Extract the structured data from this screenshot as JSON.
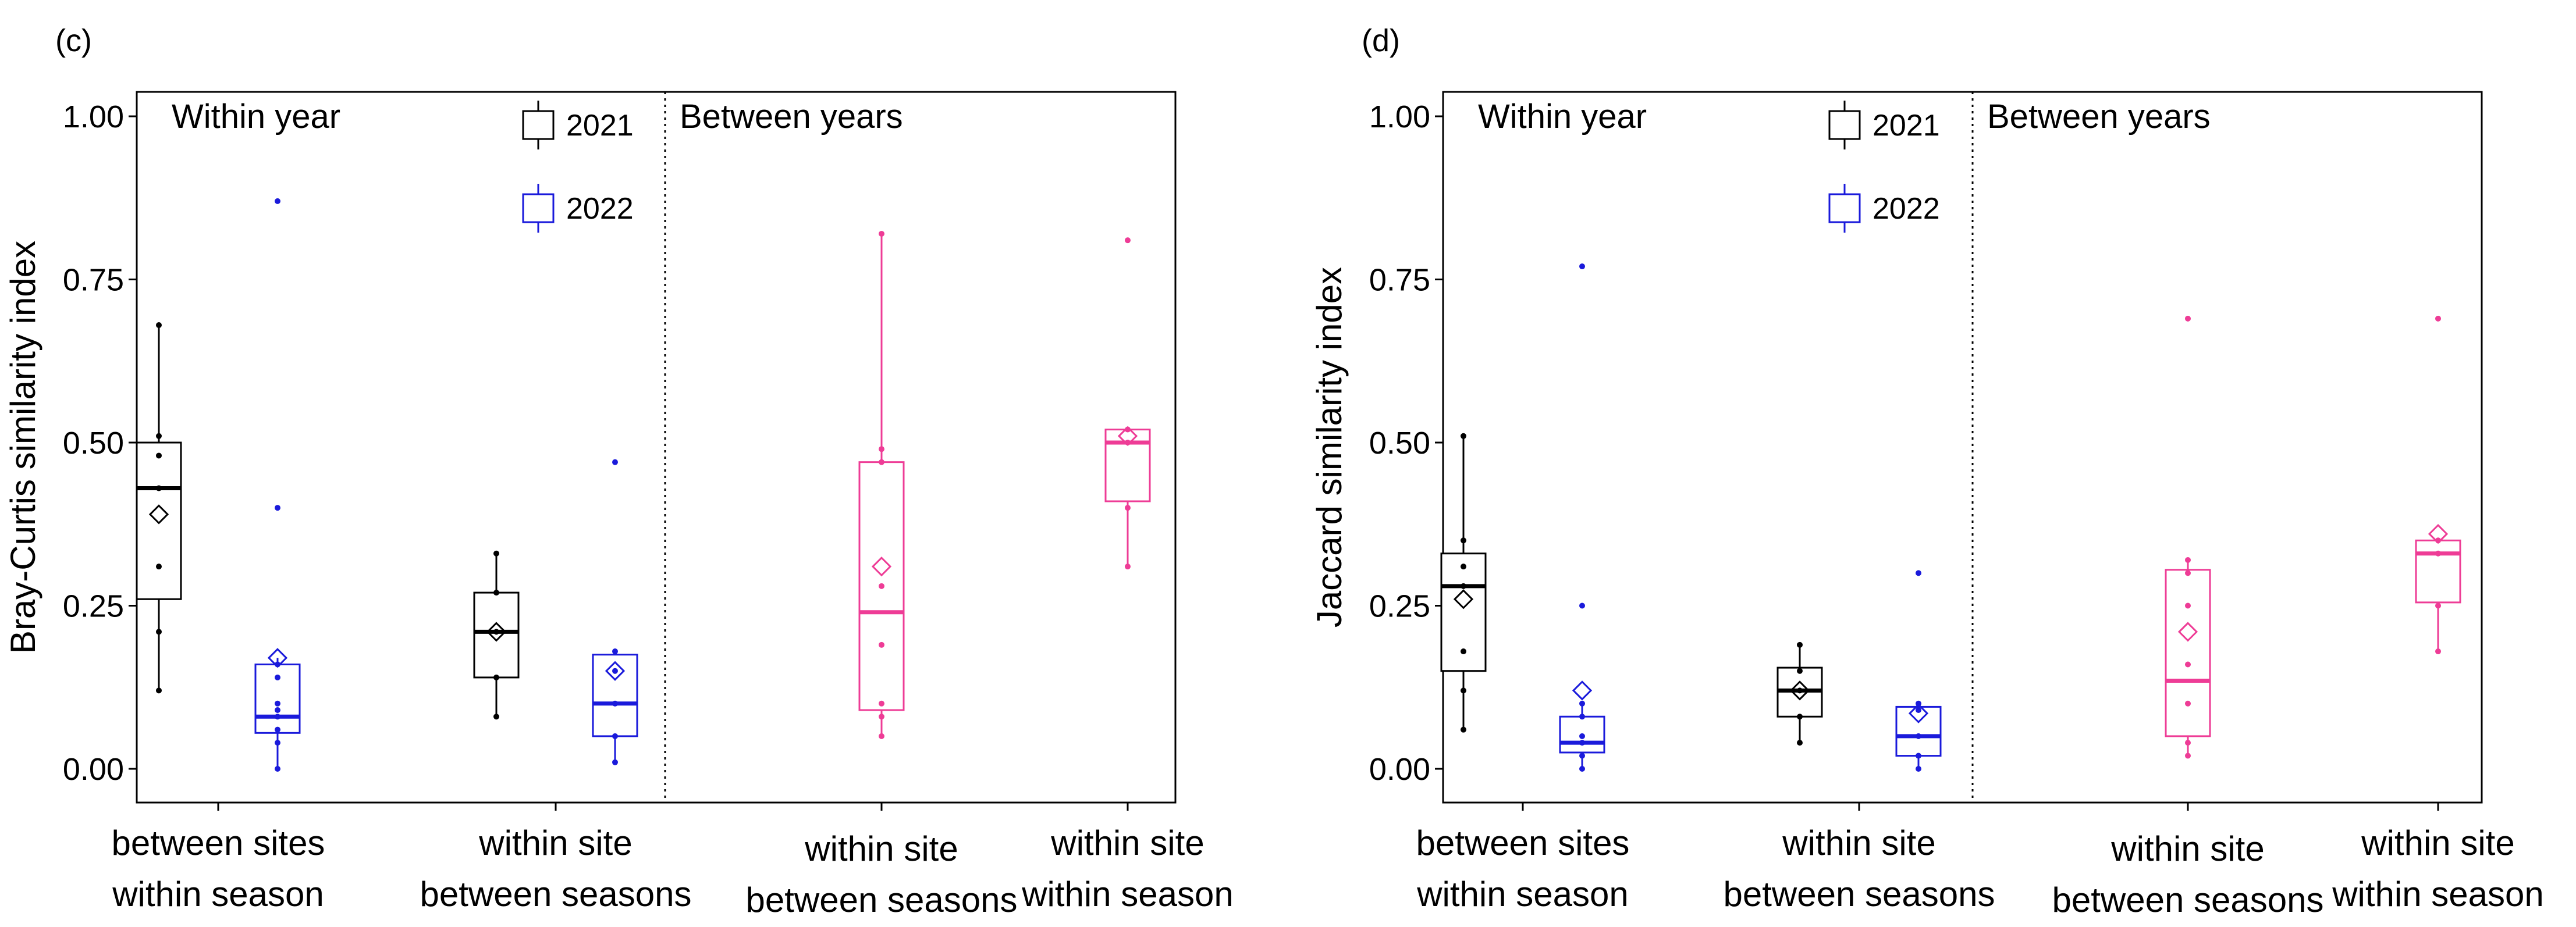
{
  "chart_data": [
    {
      "type": "boxplot",
      "panel_label": "(c)",
      "ylabel": "Bray-Curtis similarity index",
      "ylim": [
        0,
        1
      ],
      "yticks": [
        "0.00",
        "0.25",
        "0.50",
        "0.75",
        "1.00"
      ],
      "regions": [
        "Within year",
        "Between years"
      ],
      "legend": [
        {
          "name": "2021",
          "color": "#000000"
        },
        {
          "name": "2022",
          "color": "#1a1adb"
        }
      ],
      "groups": [
        {
          "line1": "between sites",
          "line2": "within season"
        },
        {
          "line1": "within site",
          "line2": "between seasons"
        },
        {
          "line1": "within site",
          "line2": "between seasons"
        },
        {
          "line1": "within site",
          "line2": "within season"
        }
      ],
      "boxes": [
        {
          "group": 0,
          "series": "2021",
          "color": "#000000",
          "whisker_low": 0.12,
          "q1": 0.26,
          "median": 0.43,
          "q3": 0.5,
          "whisker_high": 0.68,
          "mean": 0.39,
          "points": [
            0.12,
            0.21,
            0.31,
            0.43,
            0.48,
            0.51,
            0.68
          ],
          "outliers": []
        },
        {
          "group": 0,
          "series": "2022",
          "color": "#1a1adb",
          "whisker_low": 0.0,
          "q1": 0.055,
          "median": 0.08,
          "q3": 0.16,
          "whisker_high": 0.17,
          "mean": 0.17,
          "points": [
            0.0,
            0.04,
            0.06,
            0.08,
            0.09,
            0.1,
            0.14,
            0.16
          ],
          "outliers": [
            0.4,
            0.87
          ]
        },
        {
          "group": 1,
          "series": "2021",
          "color": "#000000",
          "whisker_low": 0.08,
          "q1": 0.14,
          "median": 0.21,
          "q3": 0.27,
          "whisker_high": 0.33,
          "mean": 0.21,
          "points": [
            0.08,
            0.14,
            0.21,
            0.27,
            0.33
          ],
          "outliers": []
        },
        {
          "group": 1,
          "series": "2022",
          "color": "#1a1adb",
          "whisker_low": 0.01,
          "q1": 0.05,
          "median": 0.1,
          "q3": 0.175,
          "whisker_high": 0.18,
          "mean": 0.15,
          "points": [
            0.01,
            0.05,
            0.1,
            0.15,
            0.18
          ],
          "outliers": [
            0.47
          ]
        },
        {
          "group": 2,
          "series": "between",
          "color": "#ee3c96",
          "whisker_low": 0.05,
          "q1": 0.09,
          "median": 0.24,
          "q3": 0.47,
          "whisker_high": 0.82,
          "mean": 0.31,
          "points": [
            0.05,
            0.08,
            0.1,
            0.19,
            0.28,
            0.47,
            0.49,
            0.82
          ],
          "outliers": []
        },
        {
          "group": 3,
          "series": "between",
          "color": "#ee3c96",
          "whisker_low": 0.31,
          "q1": 0.41,
          "median": 0.5,
          "q3": 0.52,
          "whisker_high": 0.52,
          "mean": 0.51,
          "points": [
            0.31,
            0.4,
            0.5,
            0.52
          ],
          "outliers": [
            0.81
          ]
        }
      ]
    },
    {
      "type": "boxplot",
      "panel_label": "(d)",
      "ylabel": "Jaccard similarity index",
      "ylim": [
        0,
        1
      ],
      "yticks": [
        "0.00",
        "0.25",
        "0.50",
        "0.75",
        "1.00"
      ],
      "regions": [
        "Within year",
        "Between years"
      ],
      "legend": [
        {
          "name": "2021",
          "color": "#000000"
        },
        {
          "name": "2022",
          "color": "#1a1adb"
        }
      ],
      "groups": [
        {
          "line1": "between sites",
          "line2": "within season"
        },
        {
          "line1": "within site",
          "line2": "between seasons"
        },
        {
          "line1": "within site",
          "line2": "between seasons"
        },
        {
          "line1": "within site",
          "line2": "within season"
        }
      ],
      "boxes": [
        {
          "group": 0,
          "series": "2021",
          "color": "#000000",
          "whisker_low": 0.06,
          "q1": 0.15,
          "median": 0.28,
          "q3": 0.33,
          "whisker_high": 0.51,
          "mean": 0.26,
          "points": [
            0.06,
            0.12,
            0.18,
            0.28,
            0.31,
            0.35,
            0.51
          ],
          "outliers": []
        },
        {
          "group": 0,
          "series": "2022",
          "color": "#1a1adb",
          "whisker_low": 0.0,
          "q1": 0.025,
          "median": 0.04,
          "q3": 0.08,
          "whisker_high": 0.1,
          "mean": 0.12,
          "points": [
            0.0,
            0.02,
            0.04,
            0.05,
            0.08,
            0.1
          ],
          "outliers": [
            0.25,
            0.77
          ]
        },
        {
          "group": 1,
          "series": "2021",
          "color": "#000000",
          "whisker_low": 0.04,
          "q1": 0.08,
          "median": 0.12,
          "q3": 0.155,
          "whisker_high": 0.19,
          "mean": 0.12,
          "points": [
            0.04,
            0.08,
            0.12,
            0.15,
            0.19
          ],
          "outliers": []
        },
        {
          "group": 1,
          "series": "2022",
          "color": "#1a1adb",
          "whisker_low": 0.0,
          "q1": 0.02,
          "median": 0.05,
          "q3": 0.095,
          "whisker_high": 0.1,
          "mean": 0.085,
          "points": [
            0.0,
            0.02,
            0.05,
            0.09,
            0.1
          ],
          "outliers": [
            0.3
          ]
        },
        {
          "group": 2,
          "series": "between",
          "color": "#ee3c96",
          "whisker_low": 0.02,
          "q1": 0.05,
          "median": 0.135,
          "q3": 0.305,
          "whisker_high": 0.32,
          "mean": 0.21,
          "points": [
            0.02,
            0.04,
            0.1,
            0.16,
            0.25,
            0.3,
            0.32
          ],
          "outliers": [
            0.69
          ]
        },
        {
          "group": 3,
          "series": "between",
          "color": "#ee3c96",
          "whisker_low": 0.18,
          "q1": 0.255,
          "median": 0.33,
          "q3": 0.35,
          "whisker_high": 0.35,
          "mean": 0.36,
          "points": [
            0.18,
            0.25,
            0.33,
            0.35
          ],
          "outliers": [
            0.69
          ]
        }
      ]
    }
  ]
}
